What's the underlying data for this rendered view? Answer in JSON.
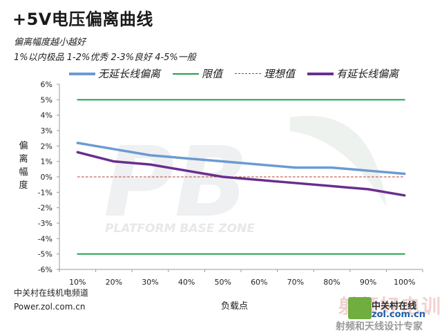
{
  "header": {
    "title": "+5V电压偏离曲线",
    "subtitle": "偏离幅度越小越好",
    "grading": "1%以内极品 1-2%优秀  2-3%良好 4-5%一般"
  },
  "footer": {
    "source_line1": "中关村在线机电频道",
    "source_line2": "Power.zol.com.cn"
  },
  "watermark": {
    "main": "PB",
    "sub": "PLATFORM BASE ZONE"
  },
  "logo": {
    "line1": "中关村在线",
    "line2": "zol.com.cn",
    "line3": "射频和天线设计专家",
    "faded": "射频好电训"
  },
  "chart_data": {
    "type": "line",
    "title": "+5V电压偏离曲线",
    "xlabel": "负载点",
    "ylabel": "偏离幅度",
    "categories": [
      "10%",
      "20%",
      "30%",
      "40%",
      "50%",
      "60%",
      "70%",
      "80%",
      "90%",
      "100%"
    ],
    "ylim": [
      -6,
      6
    ],
    "yticks": [
      "6%",
      "5%",
      "4%",
      "3%",
      "2%",
      "1%",
      "0%",
      "-1%",
      "-2%",
      "-3%",
      "-4%",
      "-5%",
      "-6%"
    ],
    "grid": false,
    "legend_position": "top",
    "series": [
      {
        "name": "无延长线偏离",
        "color": "#6a9bd1",
        "style": "solid",
        "values": [
          2.2,
          1.8,
          1.4,
          1.2,
          1.0,
          0.8,
          0.6,
          0.6,
          0.4,
          0.2
        ]
      },
      {
        "name": "限值",
        "color": "#21a04d",
        "style": "solid",
        "values": [
          5,
          5,
          5,
          5,
          5,
          5,
          5,
          5,
          5,
          5
        ]
      },
      {
        "name": "限值",
        "color": "#21a04d",
        "style": "solid",
        "values": [
          -5,
          -5,
          -5,
          -5,
          -5,
          -5,
          -5,
          -5,
          -5,
          -5
        ]
      },
      {
        "name": "理想值",
        "color": "#b03a2e",
        "style": "dashed",
        "values": [
          0,
          0,
          0,
          0,
          0,
          0,
          0,
          0,
          0,
          0
        ]
      },
      {
        "name": "有延长线偏离",
        "color": "#6a2d8f",
        "style": "solid",
        "values": [
          1.6,
          1.0,
          0.8,
          0.4,
          0.0,
          -0.2,
          -0.4,
          -0.6,
          -0.8,
          -1.2
        ]
      }
    ],
    "legend": [
      {
        "name": "无延长线偏离",
        "color": "#6a9bd1",
        "style": "solid"
      },
      {
        "name": "限值",
        "color": "#21a04d",
        "style": "solid"
      },
      {
        "name": "理想值",
        "color": "#b03a2e",
        "style": "dashed"
      },
      {
        "name": "有延长线偏离",
        "color": "#6a2d8f",
        "style": "solid"
      }
    ]
  }
}
